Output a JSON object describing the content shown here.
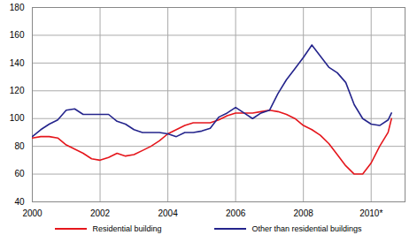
{
  "chart_data": {
    "type": "line",
    "x": [
      2000,
      2000.25,
      2000.5,
      2000.75,
      2001,
      2001.25,
      2001.5,
      2001.75,
      2002,
      2002.25,
      2002.5,
      2002.75,
      2003,
      2003.25,
      2003.5,
      2003.75,
      2004,
      2004.25,
      2004.5,
      2004.75,
      2005,
      2005.25,
      2005.5,
      2005.75,
      2006,
      2006.25,
      2006.5,
      2006.75,
      2007,
      2007.25,
      2007.5,
      2007.75,
      2008,
      2008.25,
      2008.5,
      2008.75,
      2009,
      2009.25,
      2009.5,
      2009.75,
      2010,
      2010.25,
      2010.5,
      2010.6
    ],
    "series": [
      {
        "name": "Residential building",
        "color": "#e5161c",
        "values": [
          86,
          87,
          87,
          86,
          81,
          78,
          75,
          71,
          70,
          72,
          75,
          73,
          74,
          77,
          80,
          84,
          89,
          92,
          95,
          97,
          97,
          97,
          99,
          102,
          104,
          104,
          104,
          105,
          106,
          105,
          103,
          100,
          95,
          92,
          88,
          82,
          74,
          66,
          60,
          60,
          68,
          80,
          90,
          100
        ]
      },
      {
        "name": "Other than residential buildings",
        "color": "#24248c",
        "values": [
          87,
          92,
          96,
          99,
          106,
          107,
          103,
          103,
          103,
          103,
          98,
          96,
          92,
          90,
          90,
          90,
          89,
          87,
          90,
          90,
          91,
          93,
          101,
          104,
          108,
          104,
          100,
          104,
          106,
          118,
          128,
          136,
          144,
          153,
          145,
          137,
          133,
          126,
          110,
          100,
          96,
          95,
          99,
          104
        ]
      }
    ],
    "xlim": [
      2000,
      2011
    ],
    "xticks": [
      2000,
      2002,
      2004,
      2006,
      2008,
      {
        "value": 2010,
        "label": "2010*"
      }
    ],
    "ylim": [
      40,
      180
    ],
    "yticks": [
      40,
      60,
      80,
      100,
      120,
      140,
      160,
      180
    ],
    "grid": true,
    "legend": "bottom"
  }
}
